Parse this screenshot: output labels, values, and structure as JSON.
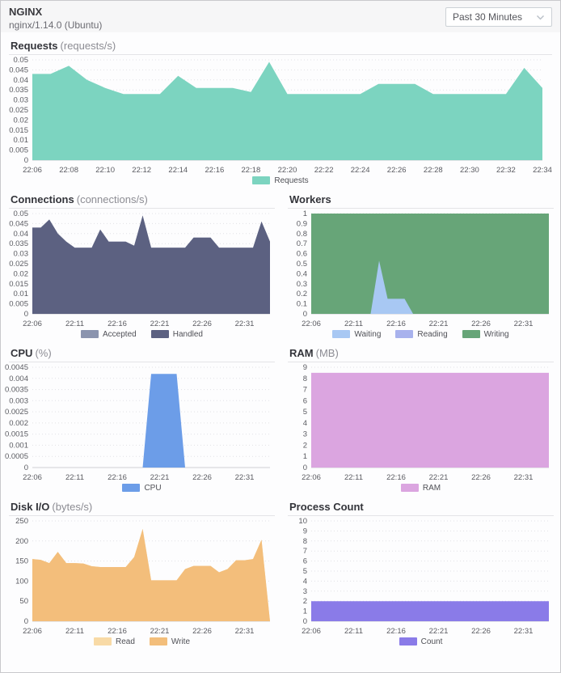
{
  "header": {
    "title": "NGINX",
    "subtitle": "nginx/1.14.0 (Ubuntu)",
    "time_range_selected": "Past 30 Minutes"
  },
  "chart_data": [
    {
      "id": "requests",
      "type": "area",
      "layout": "full",
      "title": "Requests",
      "unit": "(requests/s)",
      "ylim": [
        0,
        0.05
      ],
      "y_ticks": [
        0,
        0.005,
        0.01,
        0.015,
        0.02,
        0.025,
        0.03,
        0.035,
        0.04,
        0.045,
        0.05
      ],
      "y_tick_labels": [
        "0",
        "0.005",
        "0.01",
        "0.015",
        "0.02",
        "0.025",
        "0.03",
        "0.035",
        "0.04",
        "0.045",
        "0.05"
      ],
      "x_start": "22:06",
      "x_end": "22:34",
      "minutes_per_point": 1,
      "x_ticks": [
        0,
        2,
        4,
        6,
        8,
        10,
        12,
        14,
        16,
        18,
        20,
        22,
        24,
        26,
        28
      ],
      "x_tick_labels": [
        "22:06",
        "22:08",
        "22:10",
        "22:12",
        "22:14",
        "22:16",
        "22:18",
        "22:20",
        "22:22",
        "22:24",
        "22:26",
        "22:28",
        "22:30",
        "22:32",
        "22:34"
      ],
      "legend_order": [
        "Requests"
      ],
      "series": [
        {
          "name": "Requests",
          "color": "#7cd4c0",
          "values": [
            0.043,
            0.043,
            0.047,
            0.04,
            0.036,
            0.033,
            0.033,
            0.033,
            0.042,
            0.036,
            0.036,
            0.036,
            0.034,
            0.049,
            0.033,
            0.033,
            0.033,
            0.033,
            0.033,
            0.038,
            0.038,
            0.038,
            0.033,
            0.033,
            0.033,
            0.033,
            0.033,
            0.046,
            0.036
          ]
        }
      ]
    },
    {
      "id": "connections",
      "type": "area",
      "layout": "half",
      "title": "Connections",
      "unit": "(connections/s)",
      "ylim": [
        0,
        0.05
      ],
      "y_ticks": [
        0,
        0.005,
        0.01,
        0.015,
        0.02,
        0.025,
        0.03,
        0.035,
        0.04,
        0.045,
        0.05
      ],
      "y_tick_labels": [
        "0",
        "0.005",
        "0.01",
        "0.015",
        "0.02",
        "0.025",
        "0.03",
        "0.035",
        "0.04",
        "0.045",
        "0.05"
      ],
      "x_start": "22:06",
      "x_end": "22:34",
      "minutes_per_point": 1,
      "x_ticks": [
        0,
        5,
        10,
        15,
        20,
        25
      ],
      "x_tick_labels": [
        "22:06",
        "22:11",
        "22:16",
        "22:21",
        "22:26",
        "22:31"
      ],
      "legend_order": [
        "Accepted",
        "Handled"
      ],
      "series": [
        {
          "name": "Accepted",
          "color": "#8b94ae",
          "values": [
            0.043,
            0.043,
            0.047,
            0.04,
            0.036,
            0.033,
            0.033,
            0.033,
            0.042,
            0.036,
            0.036,
            0.036,
            0.034,
            0.049,
            0.033,
            0.033,
            0.033,
            0.033,
            0.033,
            0.038,
            0.038,
            0.038,
            0.033,
            0.033,
            0.033,
            0.033,
            0.033,
            0.046,
            0.036
          ]
        },
        {
          "name": "Handled",
          "color": "#5c6181",
          "values": [
            0.043,
            0.043,
            0.047,
            0.04,
            0.036,
            0.033,
            0.033,
            0.033,
            0.042,
            0.036,
            0.036,
            0.036,
            0.034,
            0.049,
            0.033,
            0.033,
            0.033,
            0.033,
            0.033,
            0.038,
            0.038,
            0.038,
            0.033,
            0.033,
            0.033,
            0.033,
            0.033,
            0.046,
            0.036
          ]
        }
      ]
    },
    {
      "id": "workers",
      "type": "area",
      "layout": "half",
      "title": "Workers",
      "unit": "",
      "ylim": [
        0,
        1
      ],
      "y_ticks": [
        0,
        0.1,
        0.2,
        0.3,
        0.4,
        0.5,
        0.6,
        0.7,
        0.8,
        0.9,
        1
      ],
      "y_tick_labels": [
        "0",
        "0.1",
        "0.2",
        "0.3",
        "0.4",
        "0.5",
        "0.6",
        "0.7",
        "0.8",
        "0.9",
        "1"
      ],
      "x_start": "22:06",
      "x_end": "22:34",
      "minutes_per_point": 1,
      "x_ticks": [
        0,
        5,
        10,
        15,
        20,
        25
      ],
      "x_tick_labels": [
        "22:06",
        "22:11",
        "22:16",
        "22:21",
        "22:26",
        "22:31"
      ],
      "legend_order": [
        "Waiting",
        "Reading",
        "Writing"
      ],
      "series": [
        {
          "name": "Writing",
          "color": "#67a578",
          "values": [
            1,
            1,
            1,
            1,
            1,
            1,
            1,
            1,
            1,
            1,
            1,
            1,
            1,
            1,
            1,
            1,
            1,
            1,
            1,
            1,
            1,
            1,
            1,
            1,
            1,
            1,
            1,
            1,
            1
          ]
        },
        {
          "name": "Reading",
          "color": "#a8b2ed",
          "values": [
            0,
            0,
            0,
            0,
            0,
            0,
            0,
            0,
            0,
            0,
            0,
            0,
            0,
            0,
            0,
            0,
            0,
            0,
            0,
            0,
            0,
            0,
            0,
            0,
            0,
            0,
            0,
            0,
            0
          ]
        },
        {
          "name": "Waiting",
          "color": "#a8c8f3",
          "values": [
            0,
            0,
            0,
            0,
            0,
            0,
            0,
            0,
            0.53,
            0.15,
            0.15,
            0.15,
            0,
            0,
            0,
            0,
            0,
            0,
            0,
            0,
            0,
            0,
            0,
            0,
            0,
            0,
            0,
            0,
            0
          ]
        }
      ]
    },
    {
      "id": "cpu",
      "type": "area",
      "layout": "half",
      "title": "CPU",
      "unit": "(%)",
      "ylim": [
        0,
        0.0045
      ],
      "y_ticks": [
        0,
        0.0005,
        0.001,
        0.0015,
        0.002,
        0.0025,
        0.003,
        0.0035,
        0.004,
        0.0045
      ],
      "y_tick_labels": [
        "0",
        "0.0005",
        "0.001",
        "0.0015",
        "0.002",
        "0.0025",
        "0.003",
        "0.0035",
        "0.004",
        "0.0045"
      ],
      "x_start": "22:06",
      "x_end": "22:34",
      "minutes_per_point": 1,
      "x_ticks": [
        0,
        5,
        10,
        15,
        20,
        25
      ],
      "x_tick_labels": [
        "22:06",
        "22:11",
        "22:16",
        "22:21",
        "22:26",
        "22:31"
      ],
      "legend_order": [
        "CPU"
      ],
      "series": [
        {
          "name": "CPU",
          "color": "#6c9de8",
          "values": [
            0,
            0,
            0,
            0,
            0,
            0,
            0,
            0,
            0,
            0,
            0,
            0,
            0,
            0,
            0.0042,
            0.0042,
            0.0042,
            0.0042,
            0,
            0,
            0,
            0,
            0,
            0,
            0,
            0,
            0,
            0,
            0
          ]
        }
      ]
    },
    {
      "id": "ram",
      "type": "area",
      "layout": "half",
      "title": "RAM",
      "unit": "(MB)",
      "ylim": [
        0,
        9
      ],
      "y_ticks": [
        0,
        1,
        2,
        3,
        4,
        5,
        6,
        7,
        8,
        9
      ],
      "y_tick_labels": [
        "0",
        "1",
        "2",
        "3",
        "4",
        "5",
        "6",
        "7",
        "8",
        "9"
      ],
      "x_start": "22:06",
      "x_end": "22:34",
      "minutes_per_point": 1,
      "x_ticks": [
        0,
        5,
        10,
        15,
        20,
        25
      ],
      "x_tick_labels": [
        "22:06",
        "22:11",
        "22:16",
        "22:21",
        "22:26",
        "22:31"
      ],
      "legend_order": [
        "RAM"
      ],
      "series": [
        {
          "name": "RAM",
          "color": "#dba5e0",
          "values": [
            8.5,
            8.5,
            8.5,
            8.5,
            8.5,
            8.5,
            8.5,
            8.5,
            8.5,
            8.5,
            8.5,
            8.5,
            8.5,
            8.5,
            8.5,
            8.5,
            8.5,
            8.5,
            8.5,
            8.5,
            8.5,
            8.5,
            8.5,
            8.5,
            8.5,
            8.5,
            8.5,
            8.5,
            8.5
          ]
        }
      ]
    },
    {
      "id": "diskio",
      "type": "area",
      "layout": "half",
      "title": "Disk I/O",
      "unit": "(bytes/s)",
      "ylim": [
        0,
        250
      ],
      "y_ticks": [
        0,
        50,
        100,
        150,
        200,
        250
      ],
      "y_tick_labels": [
        "0",
        "50",
        "100",
        "150",
        "200",
        "250"
      ],
      "x_start": "22:06",
      "x_end": "22:34",
      "minutes_per_point": 1,
      "x_ticks": [
        0,
        5,
        10,
        15,
        20,
        25
      ],
      "x_tick_labels": [
        "22:06",
        "22:11",
        "22:16",
        "22:21",
        "22:26",
        "22:31"
      ],
      "legend_order": [
        "Read",
        "Write"
      ],
      "series": [
        {
          "name": "Read",
          "color": "#f8daa6",
          "values": [
            155,
            153,
            145,
            173,
            145,
            145,
            144,
            137,
            135,
            135,
            135,
            135,
            160,
            230,
            102,
            102,
            102,
            102,
            130,
            138,
            138,
            138,
            122,
            130,
            152,
            152,
            155,
            203,
            0
          ]
        },
        {
          "name": "Write",
          "color": "#f3be7b",
          "values": [
            155,
            153,
            145,
            173,
            145,
            145,
            144,
            137,
            135,
            135,
            135,
            135,
            160,
            230,
            102,
            102,
            102,
            102,
            130,
            138,
            138,
            138,
            122,
            130,
            152,
            152,
            155,
            203,
            0
          ]
        }
      ]
    },
    {
      "id": "process_count",
      "type": "area",
      "layout": "half",
      "title": "Process Count",
      "unit": "",
      "ylim": [
        0,
        10
      ],
      "y_ticks": [
        0,
        1,
        2,
        3,
        4,
        5,
        6,
        7,
        8,
        9,
        10
      ],
      "y_tick_labels": [
        "0",
        "1",
        "2",
        "3",
        "4",
        "5",
        "6",
        "7",
        "8",
        "9",
        "10"
      ],
      "x_start": "22:06",
      "x_end": "22:34",
      "minutes_per_point": 1,
      "x_ticks": [
        0,
        5,
        10,
        15,
        20,
        25
      ],
      "x_tick_labels": [
        "22:06",
        "22:11",
        "22:16",
        "22:21",
        "22:26",
        "22:31"
      ],
      "legend_order": [
        "Count"
      ],
      "series": [
        {
          "name": "Count",
          "color": "#8a7be8",
          "values": [
            2,
            2,
            2,
            2,
            2,
            2,
            2,
            2,
            2,
            2,
            2,
            2,
            2,
            2,
            2,
            2,
            2,
            2,
            2,
            2,
            2,
            2,
            2,
            2,
            2,
            2,
            2,
            2,
            2
          ]
        }
      ]
    }
  ]
}
